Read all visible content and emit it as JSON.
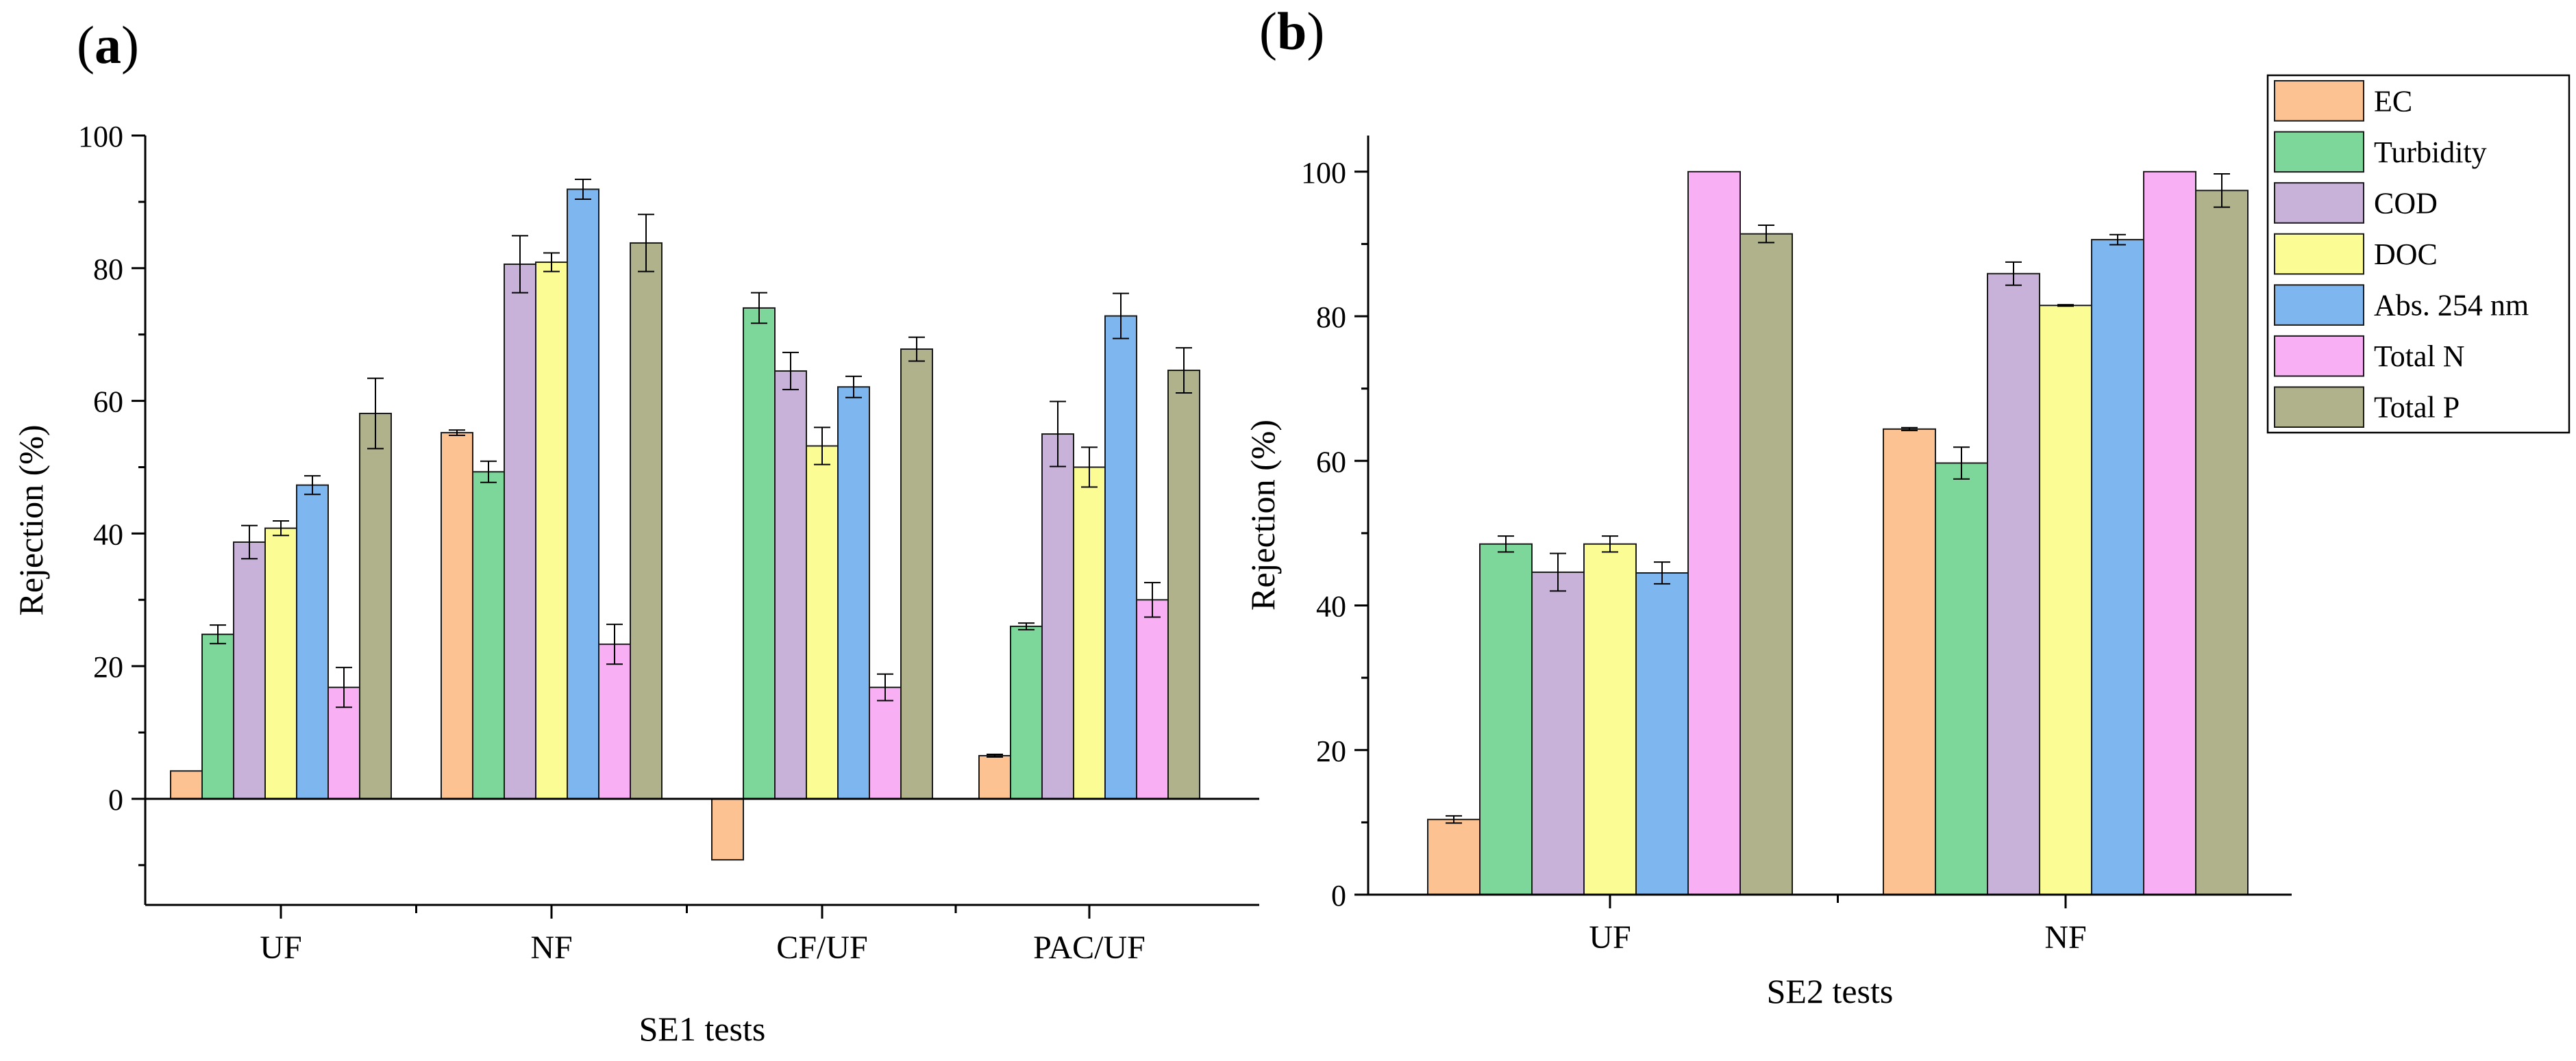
{
  "chart_data": [
    {
      "type": "bar",
      "panel_label": "(a)",
      "panel_letter": "a",
      "xlabel": "SE1 tests",
      "ylabel": "Rejection (%)",
      "ylim": [
        -16,
        100
      ],
      "yticks": [
        0,
        20,
        40,
        60,
        80,
        100
      ],
      "categories": [
        "UF",
        "NF",
        "CF/UF",
        "PAC/UF"
      ],
      "series": [
        {
          "name": "EC",
          "color": "#FCC291",
          "values": [
            4.2,
            55.2,
            -9.2,
            6.5
          ],
          "errors": [
            0,
            0.4,
            0,
            0.2
          ]
        },
        {
          "name": "Turbidity",
          "color": "#7ED79A",
          "values": [
            24.8,
            49.3,
            74.0,
            26.0
          ],
          "errors": [
            1.4,
            1.6,
            2.3,
            0.5
          ]
        },
        {
          "name": "COD",
          "color": "#C9B2D9",
          "values": [
            38.7,
            80.6,
            64.5,
            55.0
          ],
          "errors": [
            2.5,
            4.3,
            2.8,
            4.9
          ]
        },
        {
          "name": "DOC",
          "color": "#FCFC94",
          "values": [
            40.8,
            80.9,
            53.2,
            50.0
          ],
          "errors": [
            1.1,
            1.4,
            2.8,
            3.0
          ]
        },
        {
          "name": "Abs. 254 nm",
          "color": "#7EB7F0",
          "values": [
            47.3,
            91.9,
            62.1,
            72.8
          ],
          "errors": [
            1.4,
            1.5,
            1.6,
            3.4
          ]
        },
        {
          "name": "Total N",
          "color": "#F8AFF4",
          "values": [
            16.8,
            23.3,
            16.8,
            30.0
          ],
          "errors": [
            3.0,
            3.0,
            2.0,
            2.6
          ]
        },
        {
          "name": "Total P",
          "color": "#B0B28C",
          "values": [
            58.1,
            83.8,
            67.8,
            64.6
          ],
          "errors": [
            5.3,
            4.3,
            1.8,
            3.4
          ]
        }
      ]
    },
    {
      "type": "bar",
      "panel_label": "(b)",
      "panel_letter": "b",
      "xlabel": "SE2 tests",
      "ylabel": "Rejection (%)",
      "ylim": [
        0,
        105
      ],
      "yticks": [
        0,
        20,
        40,
        60,
        80,
        100
      ],
      "categories": [
        "UF",
        "NF"
      ],
      "legend_position": "top-right",
      "series": [
        {
          "name": "EC",
          "color": "#FCC291",
          "values": [
            10.4,
            64.4
          ],
          "errors": [
            0.5,
            0.2
          ]
        },
        {
          "name": "Turbidity",
          "color": "#7ED79A",
          "values": [
            48.5,
            59.7
          ],
          "errors": [
            1.1,
            2.2
          ]
        },
        {
          "name": "COD",
          "color": "#C9B2D9",
          "values": [
            44.6,
            85.9
          ],
          "errors": [
            2.6,
            1.6
          ]
        },
        {
          "name": "DOC",
          "color": "#FCFC94",
          "values": [
            48.5,
            81.5
          ],
          "errors": [
            1.1,
            0.1
          ]
        },
        {
          "name": "Abs. 254 nm",
          "color": "#7EB7F0",
          "values": [
            44.5,
            90.6
          ],
          "errors": [
            1.5,
            0.7
          ]
        },
        {
          "name": "Total N",
          "color": "#F8AFF4",
          "values": [
            100,
            100
          ],
          "errors": [
            0,
            0
          ]
        },
        {
          "name": "Total P",
          "color": "#B0B28C",
          "values": [
            91.4,
            97.4
          ],
          "errors": [
            1.2,
            2.3
          ]
        }
      ]
    }
  ]
}
